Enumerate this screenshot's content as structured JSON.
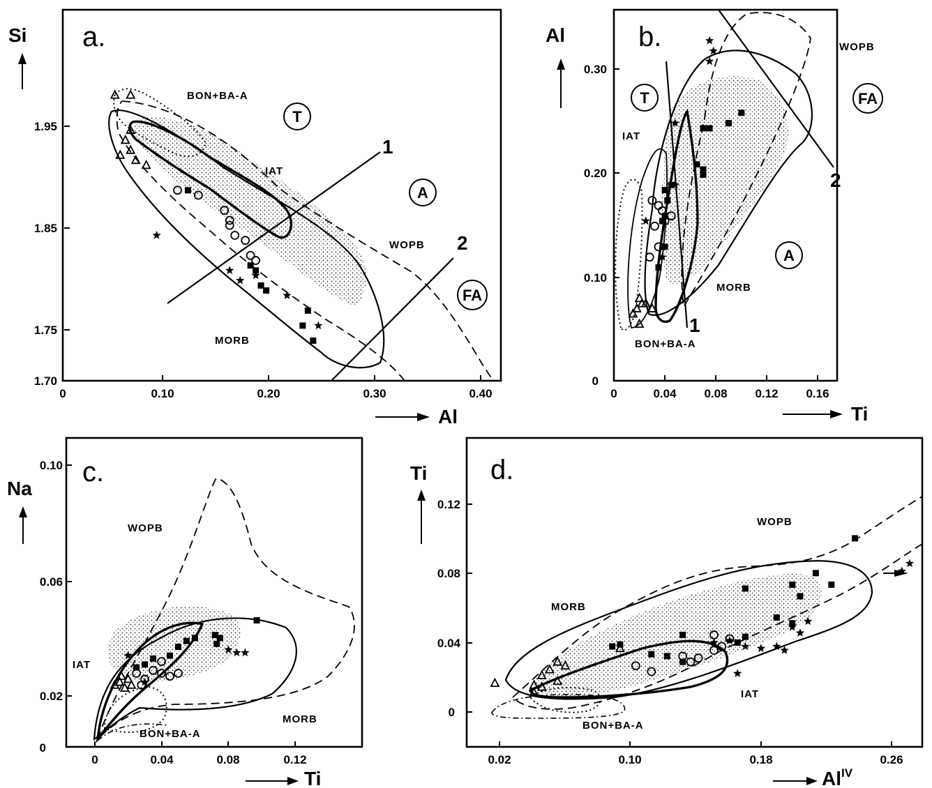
{
  "chart_data": [
    {
      "type": "scatter",
      "panel_label": "a.",
      "xlabel": "Al",
      "ylabel": "Si",
      "xlim": [
        0,
        0.42
      ],
      "ylim": [
        1.7,
        2.07
      ],
      "x_ticks": [
        "0",
        "0.10",
        "0.20",
        "0.30",
        "0.40"
      ],
      "y_ticks": [
        "1.70",
        "1.75",
        "1.85",
        "1.95"
      ],
      "field_labels": [
        "BON+BA-A",
        "IAT",
        "WOPB",
        "MORB"
      ],
      "region_labels": [
        "T",
        "A",
        "FA"
      ],
      "line_labels": [
        "1",
        "2"
      ],
      "points": {
        "squares": [
          [
            0.12,
            1.89
          ],
          [
            0.18,
            1.815
          ],
          [
            0.185,
            1.81
          ],
          [
            0.19,
            1.795
          ],
          [
            0.195,
            1.79
          ],
          [
            0.235,
            1.77
          ],
          [
            0.23,
            1.755
          ],
          [
            0.24,
            1.74
          ]
        ],
        "open_triangles": [
          [
            0.05,
            1.985
          ],
          [
            0.065,
            1.985
          ],
          [
            0.06,
            1.94
          ],
          [
            0.065,
            1.93
          ],
          [
            0.055,
            1.925
          ],
          [
            0.07,
            1.92
          ],
          [
            0.08,
            1.915
          ],
          [
            0.065,
            1.95
          ]
        ],
        "open_circles": [
          [
            0.11,
            1.89
          ],
          [
            0.13,
            1.885
          ],
          [
            0.155,
            1.87
          ],
          [
            0.16,
            1.855
          ],
          [
            0.165,
            1.845
          ],
          [
            0.175,
            1.84
          ],
          [
            0.18,
            1.825
          ],
          [
            0.185,
            1.82
          ],
          [
            0.16,
            1.86
          ]
        ],
        "stars": [
          [
            0.09,
            1.845
          ],
          [
            0.16,
            1.81
          ],
          [
            0.17,
            1.8
          ],
          [
            0.185,
            1.805
          ],
          [
            0.215,
            1.785
          ],
          [
            0.245,
            1.755
          ]
        ]
      }
    },
    {
      "type": "scatter",
      "panel_label": "b.",
      "xlabel": "Ti",
      "ylabel": "Al",
      "xlim": [
        0,
        0.175
      ],
      "ylim": [
        0,
        0.36
      ],
      "x_ticks": [
        "0",
        "0.04",
        "0.08",
        "0.12",
        "0.16"
      ],
      "y_ticks": [
        "0",
        "0.10",
        "0.20",
        "0.30"
      ],
      "field_labels": [
        "IAT",
        "WOPB",
        "MORB",
        "BON+BA-A"
      ],
      "region_labels": [
        "T",
        "FA",
        "A"
      ],
      "line_labels": [
        "2",
        "1"
      ],
      "points": {
        "squares": [
          [
            0.065,
            0.21
          ],
          [
            0.07,
            0.245
          ],
          [
            0.075,
            0.245
          ],
          [
            0.07,
            0.205
          ],
          [
            0.07,
            0.2
          ],
          [
            0.045,
            0.19
          ],
          [
            0.04,
            0.185
          ],
          [
            0.042,
            0.175
          ],
          [
            0.04,
            0.16
          ],
          [
            0.038,
            0.155
          ],
          [
            0.04,
            0.13
          ],
          [
            0.035,
            0.11
          ],
          [
            0.1,
            0.26
          ],
          [
            0.09,
            0.25
          ]
        ],
        "open_triangles": [
          [
            0.018,
            0.07
          ],
          [
            0.022,
            0.075
          ],
          [
            0.02,
            0.08
          ],
          [
            0.025,
            0.075
          ],
          [
            0.03,
            0.07
          ],
          [
            0.02,
            0.055
          ],
          [
            0.015,
            0.065
          ]
        ],
        "open_circles": [
          [
            0.03,
            0.175
          ],
          [
            0.035,
            0.17
          ],
          [
            0.038,
            0.165
          ],
          [
            0.04,
            0.155
          ],
          [
            0.032,
            0.15
          ],
          [
            0.045,
            0.16
          ],
          [
            0.028,
            0.12
          ],
          [
            0.035,
            0.13
          ]
        ],
        "stars": [
          [
            0.075,
            0.33
          ],
          [
            0.078,
            0.32
          ],
          [
            0.075,
            0.31
          ],
          [
            0.048,
            0.25
          ],
          [
            0.045,
            0.19
          ],
          [
            0.048,
            0.19
          ],
          [
            0.025,
            0.155
          ],
          [
            0.038,
            0.12
          ]
        ]
      }
    },
    {
      "type": "scatter",
      "panel_label": "c.",
      "xlabel": "Ti",
      "ylabel": "Na",
      "xlim": [
        -0.017,
        0.16
      ],
      "ylim": [
        0,
        0.105
      ],
      "x_ticks": [
        "0",
        "0.04",
        "0.08",
        "0.12"
      ],
      "y_ticks": [
        "0",
        "0.02",
        "0.06",
        "0.10"
      ],
      "field_labels": [
        "WOPB",
        "IAT",
        "MORB",
        "BON+BA-A"
      ],
      "points": {
        "squares": [
          [
            0.05,
            0.034
          ],
          [
            0.055,
            0.036
          ],
          [
            0.06,
            0.037
          ],
          [
            0.072,
            0.038
          ],
          [
            0.075,
            0.037
          ],
          [
            0.073,
            0.035
          ],
          [
            0.097,
            0.043
          ],
          [
            0.035,
            0.03
          ],
          [
            0.03,
            0.028
          ],
          [
            0.045,
            0.031
          ],
          [
            0.025,
            0.027
          ]
        ],
        "open_triangles": [
          [
            0.012,
            0.021
          ],
          [
            0.015,
            0.022
          ],
          [
            0.018,
            0.02
          ],
          [
            0.02,
            0.023
          ],
          [
            0.022,
            0.021
          ],
          [
            0.016,
            0.024
          ]
        ],
        "open_circles": [
          [
            0.025,
            0.025
          ],
          [
            0.03,
            0.023
          ],
          [
            0.035,
            0.026
          ],
          [
            0.04,
            0.025
          ],
          [
            0.045,
            0.024
          ],
          [
            0.05,
            0.025
          ],
          [
            0.028,
            0.021
          ],
          [
            0.04,
            0.029
          ]
        ],
        "stars": [
          [
            0.08,
            0.033
          ],
          [
            0.085,
            0.032
          ],
          [
            0.09,
            0.032
          ],
          [
            0.02,
            0.031
          ],
          [
            0.03,
            0.022
          ]
        ]
      }
    },
    {
      "type": "scatter",
      "panel_label": "d.",
      "xlabel": "Al",
      "xlabel_sup": "IV",
      "ylabel": "Ti",
      "xlim": [
        0.002,
        0.293
      ],
      "ylim": [
        -0.012,
        0.148
      ],
      "x_ticks": [
        "0.02",
        "0.10",
        "0.18",
        "0.26"
      ],
      "y_ticks": [
        "0",
        "0.04",
        "0.08",
        "0.12"
      ],
      "field_labels": [
        "WOPB",
        "MORB",
        "IAT",
        "BON+BA-A"
      ],
      "points": {
        "squares": [
          [
            0.095,
            0.04
          ],
          [
            0.1,
            0.041
          ],
          [
            0.14,
            0.046
          ],
          [
            0.18,
            0.07
          ],
          [
            0.21,
            0.072
          ],
          [
            0.215,
            0.066
          ],
          [
            0.225,
            0.078
          ],
          [
            0.235,
            0.072
          ],
          [
            0.25,
            0.096
          ],
          [
            0.2,
            0.055
          ],
          [
            0.21,
            0.052
          ],
          [
            0.18,
            0.045
          ],
          [
            0.175,
            0.042
          ],
          [
            0.13,
            0.035
          ],
          [
            0.14,
            0.032
          ],
          [
            0.12,
            0.036
          ]
        ],
        "open_triangles": [
          [
            0.02,
            0.021
          ],
          [
            0.045,
            0.02
          ],
          [
            0.05,
            0.019
          ],
          [
            0.055,
            0.028
          ],
          [
            0.05,
            0.025
          ],
          [
            0.06,
            0.022
          ],
          [
            0.045,
            0.016
          ],
          [
            0.06,
            0.032
          ],
          [
            0.065,
            0.03
          ],
          [
            0.1,
            0.039
          ]
        ],
        "open_circles": [
          [
            0.11,
            0.03
          ],
          [
            0.12,
            0.027
          ],
          [
            0.14,
            0.035
          ],
          [
            0.16,
            0.038
          ],
          [
            0.165,
            0.04
          ],
          [
            0.17,
            0.044
          ],
          [
            0.16,
            0.046
          ],
          [
            0.15,
            0.034
          ],
          [
            0.145,
            0.032
          ]
        ],
        "stars": [
          [
            0.16,
            0.042
          ],
          [
            0.17,
            0.043
          ],
          [
            0.18,
            0.04
          ],
          [
            0.19,
            0.039
          ],
          [
            0.21,
            0.05
          ],
          [
            0.215,
            0.047
          ],
          [
            0.2,
            0.04
          ],
          [
            0.22,
            0.053
          ],
          [
            0.205,
            0.038
          ],
          [
            0.285,
            0.083
          ],
          [
            0.28,
            0.079
          ],
          [
            0.175,
            0.026
          ]
        ]
      }
    }
  ]
}
